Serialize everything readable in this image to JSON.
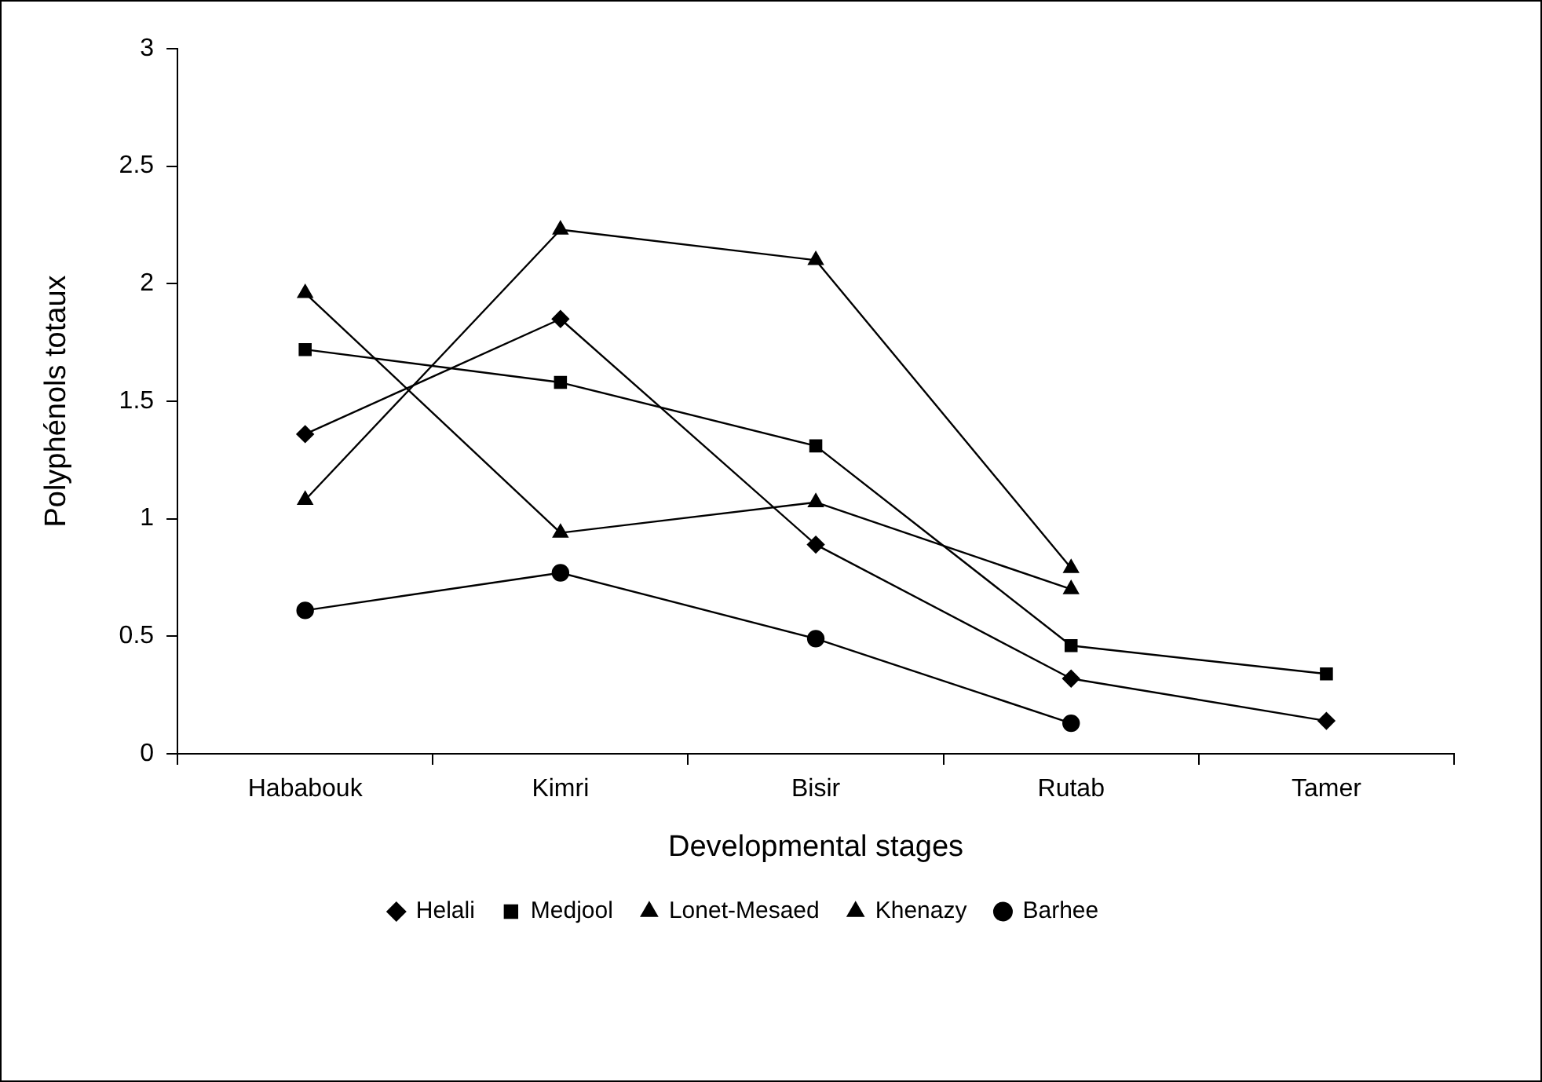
{
  "chart_data": {
    "type": "line",
    "xlabel": "Developmental stages",
    "ylabel": "Polyphénols totaux",
    "categories": [
      "Hababouk",
      "Kimri",
      "Bisir",
      "Rutab",
      "Tamer"
    ],
    "series": [
      {
        "name": "Helali",
        "color": "#000000",
        "marker": "diamond",
        "values": [
          1.36,
          1.85,
          0.89,
          0.32,
          0.14
        ]
      },
      {
        "name": "Medjool",
        "color": "#000000",
        "marker": "square",
        "values": [
          1.72,
          1.58,
          1.31,
          0.46,
          0.34
        ]
      },
      {
        "name": "Lonet-Mesaed",
        "color": "#000000",
        "marker": "triangle",
        "values": [
          1.08,
          2.23,
          2.1,
          0.79,
          null
        ]
      },
      {
        "name": "Khenazy",
        "color": "#000000",
        "marker": "triangle",
        "values": [
          1.96,
          0.94,
          1.07,
          0.7,
          null
        ]
      },
      {
        "name": "Barhee",
        "color": "#000000",
        "marker": "circle",
        "values": [
          0.61,
          0.77,
          0.49,
          0.13,
          null
        ]
      }
    ],
    "ylim": [
      0,
      3
    ],
    "yticks": [
      0,
      0.5,
      1,
      1.5,
      2,
      2.5,
      3
    ],
    "grid": false,
    "legend": "bottom",
    "line_style": "solid"
  }
}
